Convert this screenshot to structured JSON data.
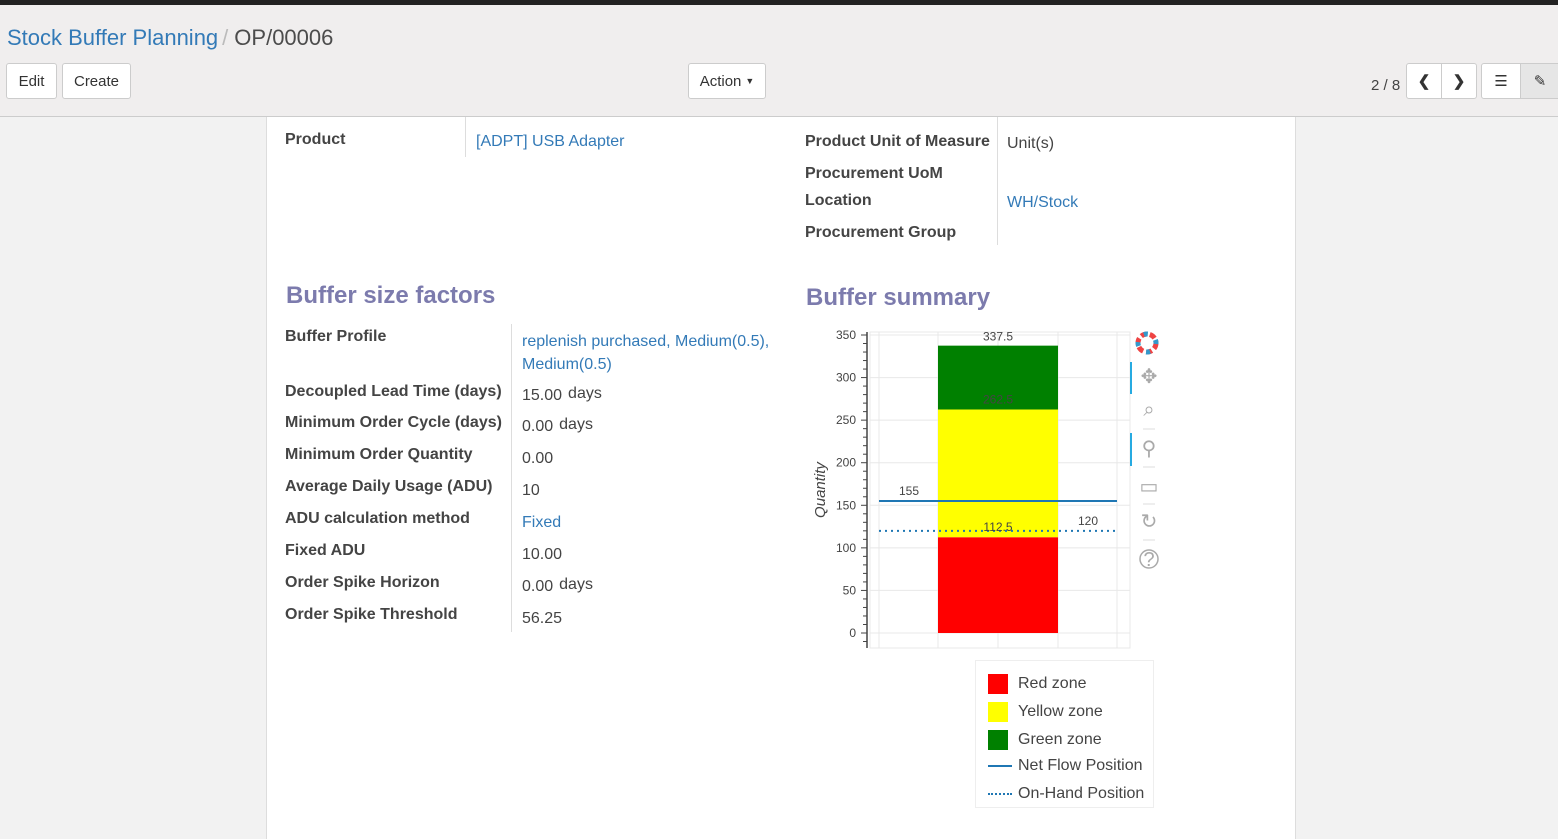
{
  "breadcrumb": {
    "parent": "Stock Buffer Planning",
    "current": "OP/00006"
  },
  "toolbar": {
    "edit": "Edit",
    "create": "Create",
    "action": "Action",
    "pager": "2 / 8"
  },
  "form": {
    "product_label": "Product",
    "product_value": "[ADPT] USB Adapter",
    "uom_label": "Product Unit of Measure",
    "uom_value": "Unit(s)",
    "proc_uom_label": "Procurement UoM",
    "location_label": "Location",
    "location_value": "WH/Stock",
    "proc_group_label": "Procurement Group"
  },
  "factors": {
    "title": "Buffer size factors",
    "rows": [
      {
        "label": "Buffer Profile",
        "value": "replenish purchased, Medium(0.5),",
        "value2": "Medium(0.5)"
      },
      {
        "label": "Decoupled Lead Time (days)",
        "value": "15.00",
        "unit": "days"
      },
      {
        "label": "Minimum Order Cycle (days)",
        "value": "0.00",
        "unit": "days"
      },
      {
        "label": "Minimum Order Quantity",
        "value": "0.00"
      },
      {
        "label": "Average Daily Usage (ADU)",
        "value": "10"
      },
      {
        "label": "ADU calculation method",
        "value": "Fixed"
      },
      {
        "label": "Fixed ADU",
        "value": "10.00"
      },
      {
        "label": "Order Spike Horizon",
        "value": "0.00",
        "unit": "days"
      },
      {
        "label": "Order Spike Threshold",
        "value": "56.25"
      }
    ]
  },
  "summary_title": "Buffer summary",
  "chart_data": {
    "type": "bar",
    "stacked": true,
    "ylabel": "Quantity",
    "ylim": [
      0,
      350
    ],
    "yticks": [
      0,
      50,
      100,
      150,
      200,
      250,
      300,
      350
    ],
    "grid": true,
    "series": [
      {
        "name": "Red zone",
        "from": 0,
        "to": 112.5,
        "color": "#ff0000",
        "label": "112.5"
      },
      {
        "name": "Yellow zone",
        "from": 112.5,
        "to": 262.5,
        "color": "#ffff00",
        "label": "262.5"
      },
      {
        "name": "Green zone",
        "from": 262.5,
        "to": 337.5,
        "color": "#008000",
        "label": "337.5"
      }
    ],
    "lines": [
      {
        "name": "Net Flow Position",
        "value": 155,
        "style": "solid",
        "color": "#1f77b4",
        "label": "155"
      },
      {
        "name": "On-Hand Position",
        "value": 120,
        "style": "dotted",
        "color": "#1f77b4",
        "label": "120"
      }
    ],
    "legend": "bottom",
    "tools": [
      "bokeh-logo",
      "pan",
      "box-zoom",
      "wheel-zoom",
      "save",
      "reset",
      "help"
    ]
  }
}
